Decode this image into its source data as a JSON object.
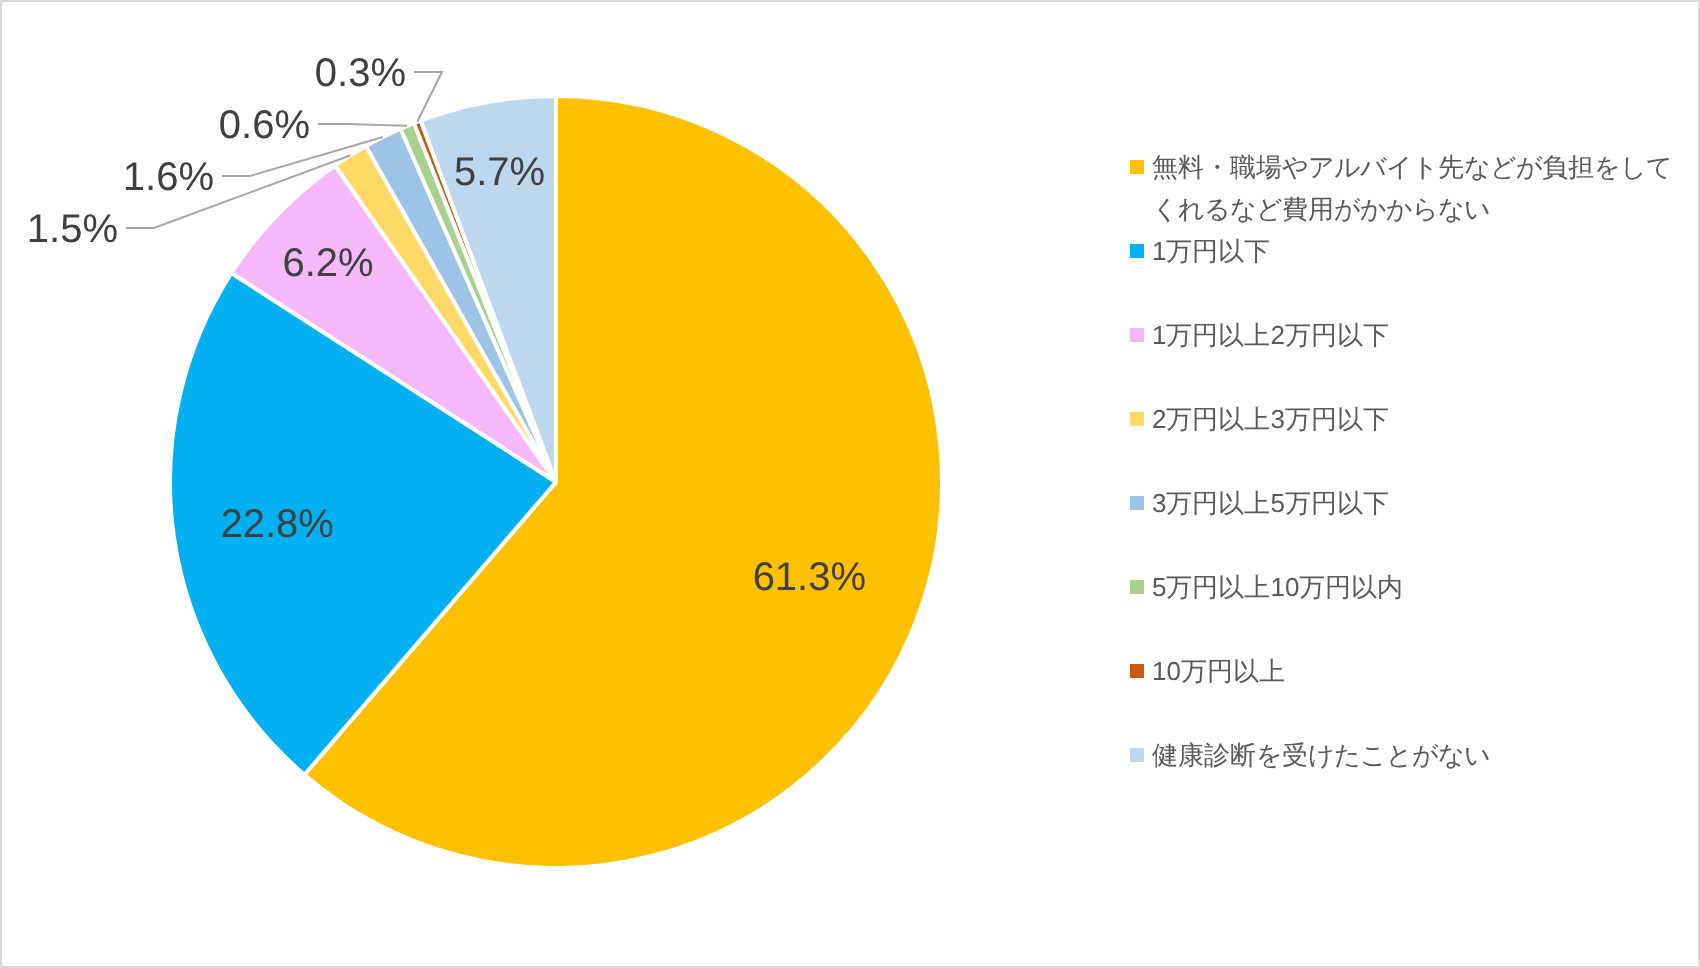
{
  "chart_data": {
    "type": "pie",
    "categories": [
      "無料・職場やアルバイト先などが負担をしてくれるなど費用がかからない",
      "1万円以下",
      "1万円以上2万円以下",
      "2万円以上3万円以下",
      "3万円以上5万円以下",
      "5万円以上10万円以内",
      "10万円以上",
      "健康診断を受けたことがない"
    ],
    "values": [
      61.3,
      22.8,
      6.2,
      1.5,
      1.6,
      0.6,
      0.3,
      5.7
    ],
    "value_labels": [
      "61.3%",
      "22.8%",
      "6.2%",
      "1.5%",
      "1.6%",
      "0.6%",
      "0.3%",
      "5.7%"
    ],
    "colors": [
      "#ffc000",
      "#00b0f0",
      "#f5b9f9",
      "#ffd966",
      "#9dc3e6",
      "#a9d18e",
      "#c55a11",
      "#bdd7ee"
    ],
    "legend": "right"
  }
}
